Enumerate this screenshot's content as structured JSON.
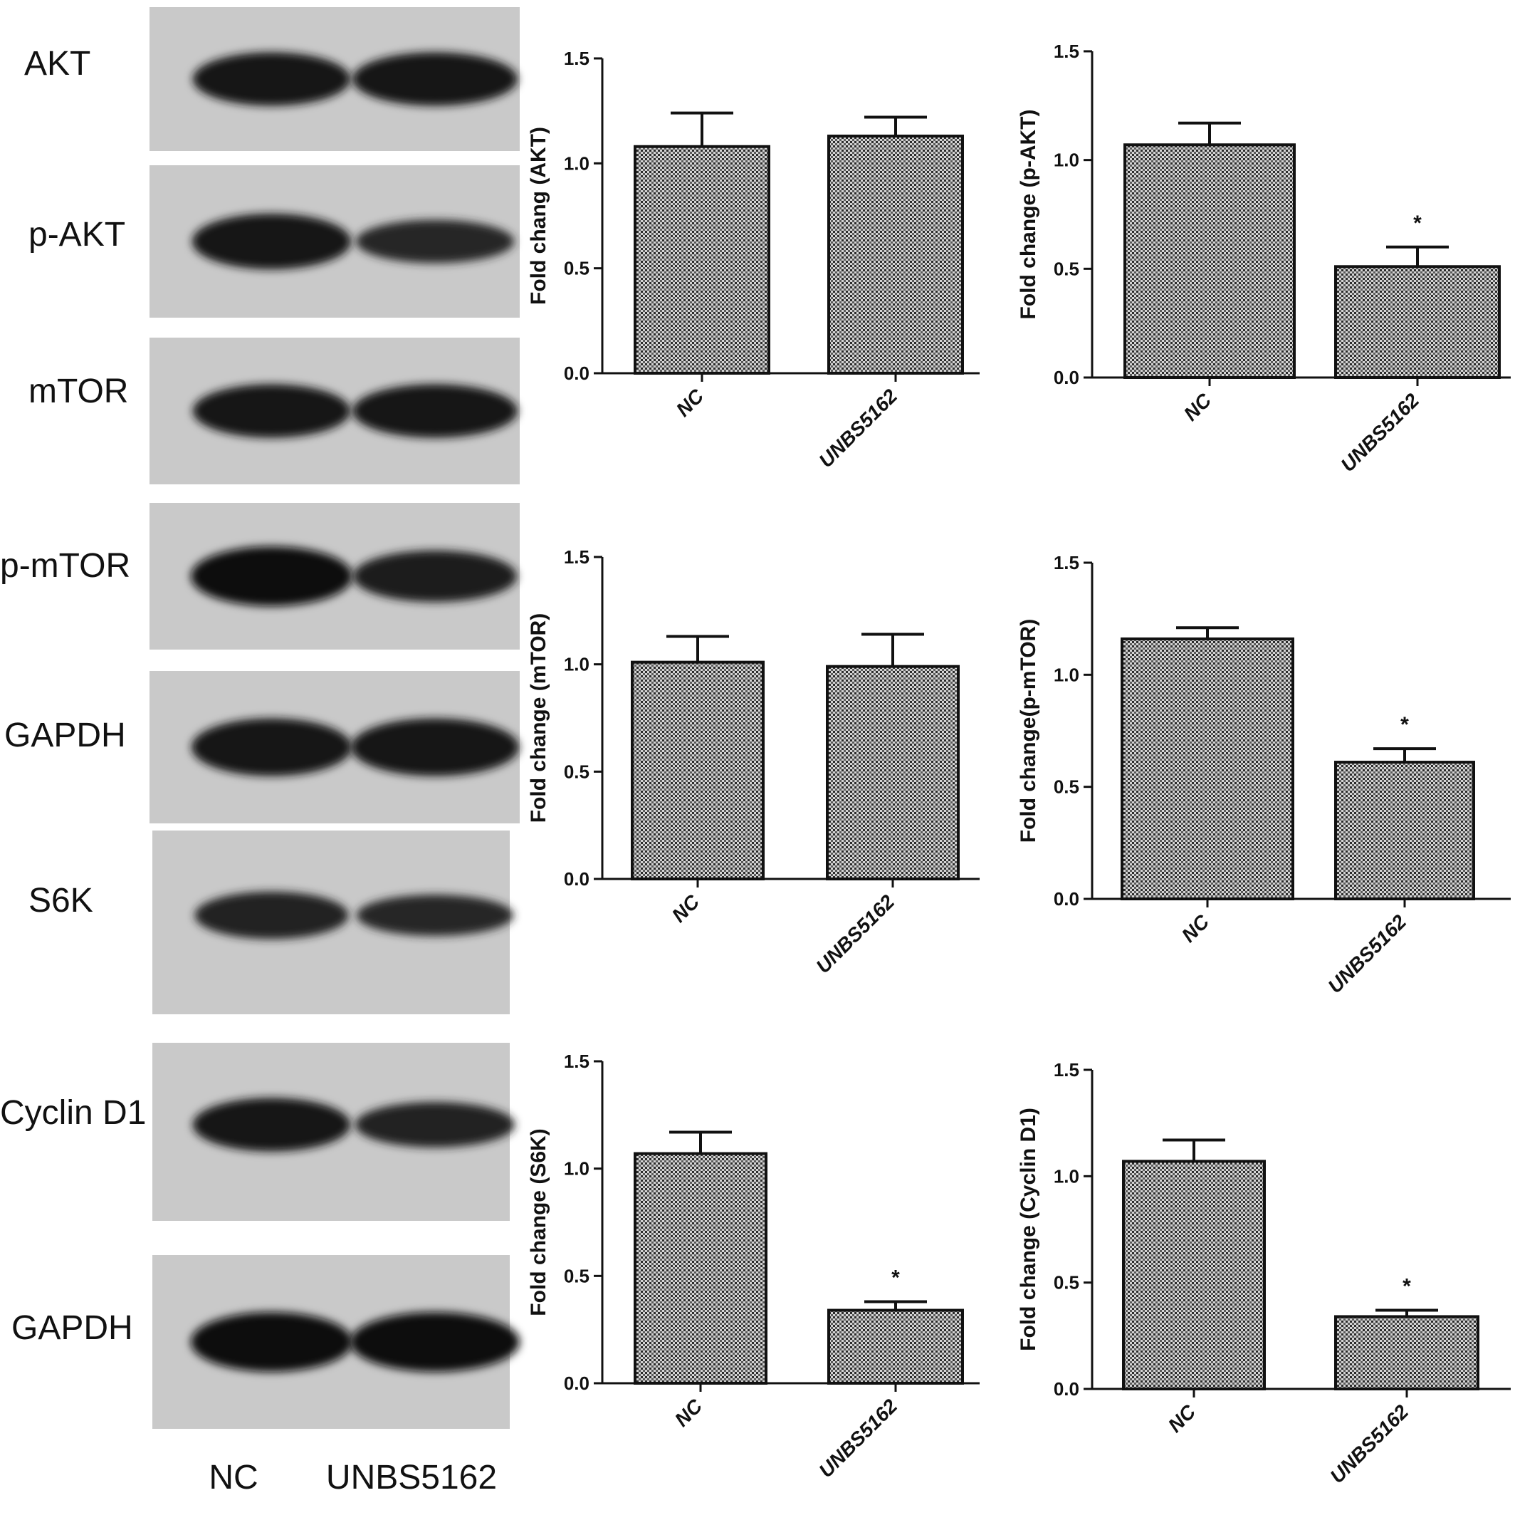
{
  "blots": {
    "rows": [
      {
        "label": "AKT",
        "band_intensity": [
          0.85,
          0.85
        ]
      },
      {
        "label": "p-AKT",
        "band_intensity": [
          0.9,
          0.6
        ]
      },
      {
        "label": "mTOR",
        "band_intensity": [
          0.85,
          0.85
        ]
      },
      {
        "label": "p-mTOR",
        "band_intensity": [
          1.0,
          0.8
        ]
      },
      {
        "label": "GAPDH",
        "band_intensity": [
          0.95,
          0.95
        ]
      },
      {
        "label": "S6K",
        "band_intensity": [
          0.7,
          0.55
        ]
      },
      {
        "label": "Cyclin D1",
        "band_intensity": [
          0.85,
          0.65
        ]
      },
      {
        "label": "GAPDH",
        "band_intensity": [
          1.0,
          1.0
        ]
      }
    ],
    "lanes": [
      "NC",
      "UNBS5162"
    ]
  },
  "chart_data": [
    {
      "type": "bar",
      "ylabel": "Fold chang (AKT)",
      "categories": [
        "NC",
        "UNBS5162"
      ],
      "values": [
        1.08,
        1.13
      ],
      "errors": [
        0.16,
        0.09
      ],
      "significance": [
        "",
        ""
      ],
      "ylim": [
        0,
        1.5
      ],
      "yticks": [
        "0.0",
        "0.5",
        "1.0",
        "1.5"
      ]
    },
    {
      "type": "bar",
      "ylabel": "Fold change (p-AKT)",
      "categories": [
        "NC",
        "UNBS5162"
      ],
      "values": [
        1.07,
        0.51
      ],
      "errors": [
        0.1,
        0.09
      ],
      "significance": [
        "",
        "*"
      ],
      "ylim": [
        0,
        1.5
      ],
      "yticks": [
        "0.0",
        "0.5",
        "1.0",
        "1.5"
      ]
    },
    {
      "type": "bar",
      "ylabel": "Fold change (mTOR)",
      "categories": [
        "NC",
        "UNBS5162"
      ],
      "values": [
        1.01,
        0.99
      ],
      "errors": [
        0.12,
        0.15
      ],
      "significance": [
        "",
        ""
      ],
      "ylim": [
        0,
        1.5
      ],
      "yticks": [
        "0.0",
        "0.5",
        "1.0",
        "1.5"
      ]
    },
    {
      "type": "bar",
      "ylabel": "Fold change(p-mTOR)",
      "categories": [
        "NC",
        "UNBS5162"
      ],
      "values": [
        1.16,
        0.61
      ],
      "errors": [
        0.05,
        0.06
      ],
      "significance": [
        "",
        "*"
      ],
      "ylim": [
        0,
        1.5
      ],
      "yticks": [
        "0.0",
        "0.5",
        "1.0",
        "1.5"
      ]
    },
    {
      "type": "bar",
      "ylabel": "Fold change (S6K)",
      "categories": [
        "NC",
        "UNBS5162"
      ],
      "values": [
        1.07,
        0.34
      ],
      "errors": [
        0.1,
        0.04
      ],
      "significance": [
        "",
        "*"
      ],
      "ylim": [
        0,
        1.5
      ],
      "yticks": [
        "0.0",
        "0.5",
        "1.0",
        "1.5"
      ]
    },
    {
      "type": "bar",
      "ylabel": "Fold change (Cyclin D1)",
      "categories": [
        "NC",
        "UNBS5162"
      ],
      "values": [
        1.07,
        0.34
      ],
      "errors": [
        0.1,
        0.03
      ],
      "significance": [
        "",
        "*"
      ],
      "ylim": [
        0,
        1.5
      ],
      "yticks": [
        "0.0",
        "0.5",
        "1.0",
        "1.5"
      ]
    }
  ]
}
